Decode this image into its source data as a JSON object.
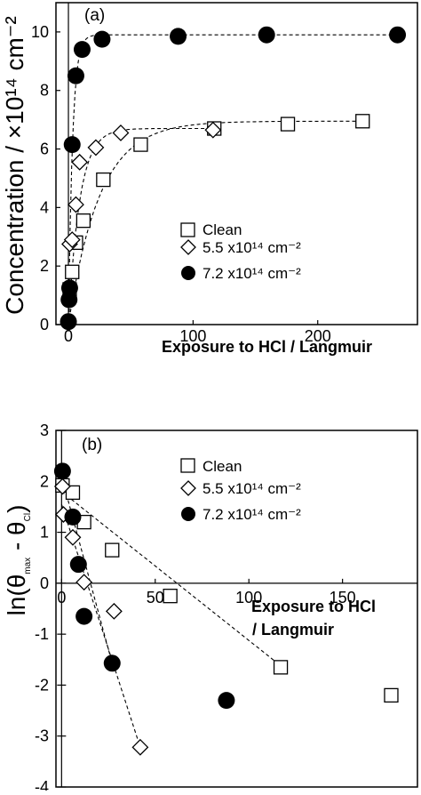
{
  "chart_data": [
    {
      "type": "scatter",
      "panel_label": "(a)",
      "xlabel": "Exposure to HCl  / Langmuir",
      "ylabel": "Concentration / ×10¹⁴ cm⁻²",
      "xlim": [
        -10,
        280
      ],
      "ylim": [
        0,
        11
      ],
      "xticks": [
        "0",
        "100",
        "200"
      ],
      "yticks": [
        "0",
        "2",
        "4",
        "6",
        "8",
        "10"
      ],
      "legend": [
        {
          "label": "Clean",
          "marker": "open-square"
        },
        {
          "label": "5.5 x10¹⁴ cm⁻²",
          "marker": "open-diamond"
        },
        {
          "label": "7.2 x10¹⁴ cm⁻²",
          "marker": "filled-circle"
        }
      ],
      "series": [
        {
          "name": "Clean",
          "marker": "open-square",
          "x": [
            1,
            3,
            6,
            12,
            28,
            58,
            117,
            176,
            236
          ],
          "y": [
            1.2,
            1.8,
            2.8,
            3.55,
            4.95,
            6.15,
            6.7,
            6.85,
            6.95
          ]
        },
        {
          "name": "5.5 x10¹⁴ cm⁻²",
          "marker": "open-diamond",
          "x": [
            0,
            1,
            3,
            6,
            9,
            22,
            42,
            116
          ],
          "y": [
            0.05,
            2.75,
            2.9,
            4.1,
            5.55,
            6.05,
            6.55,
            6.65
          ]
        },
        {
          "name": "7.2 x10¹⁴ cm⁻²",
          "marker": "filled-circle",
          "x": [
            0,
            0.5,
            1,
            3,
            6,
            11,
            27,
            88,
            159,
            264
          ],
          "y": [
            0.1,
            0.85,
            1.25,
            6.15,
            8.5,
            9.4,
            9.75,
            9.85,
            9.9,
            9.9
          ]
        }
      ],
      "fits": [
        {
          "a": 6.95,
          "k": 0.04
        },
        {
          "a": 6.7,
          "k": 0.11
        },
        {
          "a": 9.9,
          "k": 0.3
        }
      ]
    },
    {
      "type": "scatter",
      "panel_label": "(b)",
      "xlabel": "Exposure to HCl / Langmuir",
      "ylabel": "ln(θmax - θCl)",
      "xlim": [
        -3,
        190
      ],
      "ylim": [
        -4,
        3
      ],
      "xticks": [
        "0",
        "50",
        "100",
        "150"
      ],
      "yticks": [
        "-4",
        "-3",
        "-2",
        "-1",
        "0",
        "1",
        "2",
        "3"
      ],
      "legend": [
        {
          "label": "Clean",
          "marker": "open-square"
        },
        {
          "label": "5.5 x10¹⁴ cm⁻²",
          "marker": "open-diamond"
        },
        {
          "label": "7.2 x10¹⁴ cm⁻²",
          "marker": "filled-circle"
        }
      ],
      "series": [
        {
          "name": "Clean",
          "marker": "open-square",
          "x": [
            0.5,
            6,
            12,
            27,
            58,
            117,
            176
          ],
          "y": [
            1.92,
            1.78,
            1.2,
            0.65,
            -0.25,
            -1.65,
            -2.2
          ]
        },
        {
          "name": "5.5 x10¹⁴ cm⁻²",
          "marker": "open-diamond",
          "x": [
            0.5,
            1,
            6,
            12,
            28,
            42
          ],
          "y": [
            1.9,
            1.35,
            0.9,
            0.02,
            -0.55,
            -3.22
          ]
        },
        {
          "name": "7.2 x10¹⁴ cm⁻²",
          "marker": "filled-circle",
          "x": [
            0.5,
            6,
            9,
            12,
            27,
            88
          ],
          "y": [
            2.2,
            1.3,
            0.37,
            -0.65,
            -1.57,
            -2.3
          ]
        }
      ],
      "fits": [
        {
          "x": [
            0,
            117
          ],
          "y": [
            1.8,
            -1.62
          ]
        },
        {
          "x": [
            0,
            42
          ],
          "y": [
            1.55,
            -3.22
          ]
        },
        {
          "x": [
            0,
            27
          ],
          "y": [
            2.1,
            -1.57
          ]
        }
      ]
    }
  ]
}
